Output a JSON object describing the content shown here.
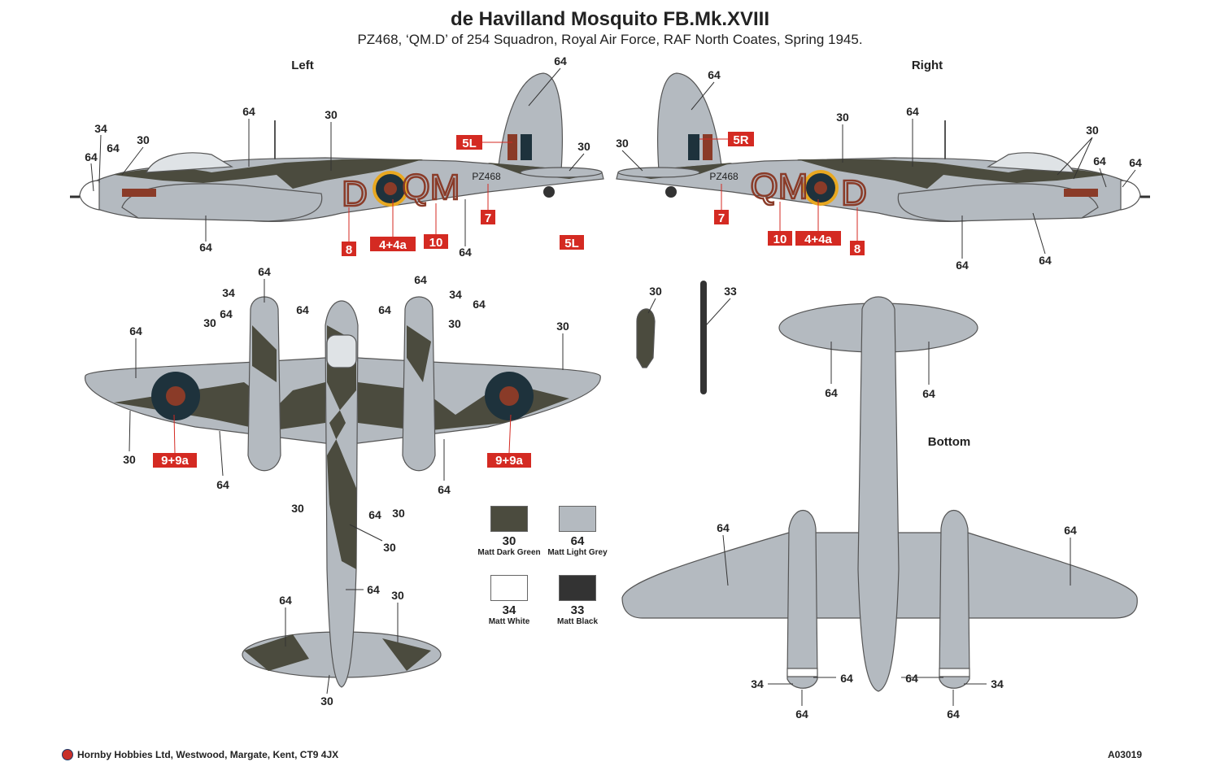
{
  "title": "de Havilland Mosquito FB.Mk.XVIII",
  "subtitle": "PZ468, ‘QM.D’ of 254 Squadron, Royal Air Force, RAF North Coates, Spring 1945.",
  "views": {
    "left": "Left",
    "right": "Right",
    "bottom": "Bottom"
  },
  "colors": {
    "dark_green": "#4b4b3e",
    "light_grey": "#b4bac0",
    "roundel_blue": "#1e323c",
    "roundel_red": "#8a3b28",
    "roundel_yellow": "#e8a820",
    "decal_red": "#d42a22"
  },
  "markings": {
    "code_left_1": "D",
    "code_left_2": "QM",
    "code_right_1": "QM",
    "code_right_2": "D",
    "serial": "PZ468"
  },
  "decals": {
    "left": [
      "5L",
      "7",
      "8",
      "4+4a",
      "10",
      "5L"
    ],
    "right": [
      "5R",
      "7",
      "10",
      "4+4a",
      "8"
    ],
    "top": [
      "9+9a",
      "9+9a"
    ]
  },
  "callouts": {
    "left": [
      "64",
      "30",
      "64",
      "34",
      "30",
      "64",
      "64",
      "30",
      "64",
      "64"
    ],
    "right": [
      "64",
      "30",
      "64",
      "30",
      "64",
      "64",
      "30",
      "64",
      "64"
    ],
    "top": [
      "64",
      "34",
      "64",
      "64",
      "30",
      "64",
      "64",
      "34",
      "64",
      "64",
      "30",
      "30",
      "30",
      "64",
      "30",
      "64",
      "30",
      "64",
      "30",
      "64",
      "30",
      "64",
      "30"
    ],
    "stores": [
      "30",
      "33"
    ],
    "bottom": [
      "64",
      "64",
      "64",
      "64",
      "34",
      "64",
      "64",
      "34",
      "64",
      "64"
    ]
  },
  "legend": [
    {
      "number": "30",
      "name": "Matt Dark Green",
      "color": "#4b4b3e"
    },
    {
      "number": "64",
      "name": "Matt Light Grey",
      "color": "#b4bac0"
    },
    {
      "number": "34",
      "name": "Matt White",
      "color": "#ffffff"
    },
    {
      "number": "33",
      "name": "Matt Black",
      "color": "#333333"
    }
  ],
  "footer": {
    "company": "Hornby Hobbies Ltd, Westwood, Margate, Kent, CT9 4JX",
    "code": "A03019"
  }
}
